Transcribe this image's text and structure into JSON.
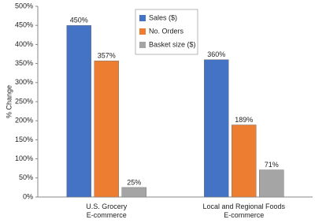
{
  "chart_data": {
    "type": "bar",
    "ylabel": "% Change",
    "categories": [
      "U.S. Grocery\nE-commerce",
      "Local and Regional Foods\nE-commerce"
    ],
    "series": [
      {
        "name": "Sales ($)",
        "color": "#4472c4",
        "values": [
          450,
          360
        ],
        "value_labels": [
          "450%",
          "360%"
        ]
      },
      {
        "name": "No. Orders",
        "color": "#ed7d31",
        "values": [
          357,
          189
        ],
        "value_labels": [
          "357%",
          "189%"
        ]
      },
      {
        "name": "Basket size ($)",
        "color": "#a5a5a5",
        "values": [
          25,
          71
        ],
        "value_labels": [
          "25%",
          "71%"
        ]
      }
    ],
    "ylim": [
      0,
      500
    ],
    "yticks": [
      {
        "value": 0,
        "label": "0%"
      },
      {
        "value": 50,
        "label": "50%"
      },
      {
        "value": 100,
        "label": "100%"
      },
      {
        "value": 150,
        "label": "150%"
      },
      {
        "value": 200,
        "label": "200%"
      },
      {
        "value": 250,
        "label": "250%"
      },
      {
        "value": 300,
        "label": "300%"
      },
      {
        "value": 350,
        "label": "350%"
      },
      {
        "value": 400,
        "label": "400%"
      },
      {
        "value": 450,
        "label": "450%"
      },
      {
        "value": 500,
        "label": "500%"
      }
    ],
    "grid": false,
    "legend": "upper center"
  }
}
